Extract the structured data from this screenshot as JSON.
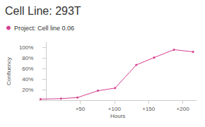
{
  "chart_data": {
    "type": "line",
    "title": "Cell Line: 293T",
    "x_label": "Hours",
    "y_label": "Confluency",
    "series": [
      {
        "name": "Project: Cell line 0.06",
        "color": "#d6408f",
        "marker": "circle",
        "x": [
          -8,
          22,
          46,
          76,
          101,
          132,
          158,
          187,
          215
        ],
        "values": [
          2,
          3,
          5,
          18,
          23,
          67,
          81,
          96,
          92
        ]
      }
    ],
    "xlim": [
      -10,
      220
    ],
    "xticks": [
      {
        "value": 50,
        "label": "+50"
      },
      {
        "value": 100,
        "label": "+100"
      },
      {
        "value": 150,
        "label": "+150"
      },
      {
        "value": 200,
        "label": "+200"
      }
    ],
    "ylim": [
      0,
      110
    ],
    "yticks": [
      {
        "value": 20,
        "label": "20%"
      },
      {
        "value": 40,
        "label": "40%"
      },
      {
        "value": 60,
        "label": "60%"
      },
      {
        "value": 80,
        "label": "80%"
      },
      {
        "value": 100,
        "label": "100%"
      }
    ],
    "grid": false,
    "legend": "top-left"
  }
}
